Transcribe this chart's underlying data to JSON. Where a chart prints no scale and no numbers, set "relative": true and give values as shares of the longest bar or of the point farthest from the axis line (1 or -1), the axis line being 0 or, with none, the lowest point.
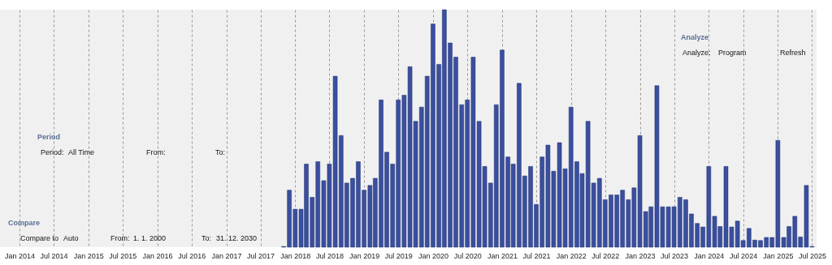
{
  "chart_data": {
    "type": "bar",
    "relative": true,
    "color": "#3a4f9e",
    "x": [
      "2017-11",
      "2017-12",
      "2018-01",
      "2018-02",
      "2018-03",
      "2018-04",
      "2018-05",
      "2018-06",
      "2018-07",
      "2018-08",
      "2018-09",
      "2018-10",
      "2018-11",
      "2018-12",
      "2019-01",
      "2019-02",
      "2019-03",
      "2019-04",
      "2019-05",
      "2019-06",
      "2019-07",
      "2019-08",
      "2019-09",
      "2019-10",
      "2019-11",
      "2019-12",
      "2020-01",
      "2020-02",
      "2020-03",
      "2020-04",
      "2020-05",
      "2020-06",
      "2020-07",
      "2020-08",
      "2020-09",
      "2020-10",
      "2020-11",
      "2020-12",
      "2021-01",
      "2021-02",
      "2021-03",
      "2021-04",
      "2021-05",
      "2021-06",
      "2021-07",
      "2021-08",
      "2021-09",
      "2021-10",
      "2021-11",
      "2021-12",
      "2022-01",
      "2022-02",
      "2022-03",
      "2022-04",
      "2022-05",
      "2022-06",
      "2022-07",
      "2022-08",
      "2022-09",
      "2022-10",
      "2022-11",
      "2022-12",
      "2023-01",
      "2023-02",
      "2023-03",
      "2023-04",
      "2023-05",
      "2023-06",
      "2023-07",
      "2023-08",
      "2023-09",
      "2023-10",
      "2023-11",
      "2023-12",
      "2024-01",
      "2024-02",
      "2024-03",
      "2024-04",
      "2024-05",
      "2024-06",
      "2024-07",
      "2024-08",
      "2024-09",
      "2024-10",
      "2024-11",
      "2024-12",
      "2025-01",
      "2025-02",
      "2025-03",
      "2025-04",
      "2025-05",
      "2025-06",
      "2025-07"
    ],
    "values": [
      0.003,
      0.24,
      0.16,
      0.16,
      0.35,
      0.21,
      0.36,
      0.28,
      0.35,
      0.72,
      0.47,
      0.27,
      0.29,
      0.36,
      0.24,
      0.26,
      0.29,
      0.62,
      0.4,
      0.35,
      0.62,
      0.64,
      0.76,
      0.53,
      0.59,
      0.72,
      0.94,
      0.77,
      1.0,
      0.86,
      0.8,
      0.6,
      0.62,
      0.8,
      0.53,
      0.34,
      0.27,
      0.6,
      0.83,
      0.38,
      0.35,
      0.69,
      0.3,
      0.34,
      0.18,
      0.38,
      0.43,
      0.32,
      0.44,
      0.33,
      0.59,
      0.36,
      0.31,
      0.53,
      0.27,
      0.29,
      0.2,
      0.22,
      0.22,
      0.24,
      0.2,
      0.25,
      0.47,
      0.15,
      0.17,
      0.68,
      0.17,
      0.17,
      0.17,
      0.21,
      0.2,
      0.14,
      0.1,
      0.085,
      0.34,
      0.13,
      0.087,
      0.34,
      0.085,
      0.11,
      0.028,
      0.079,
      0.03,
      0.028,
      0.041,
      0.041,
      0.45,
      0.041,
      0.087,
      0.13,
      0.043,
      0.26,
      0.003
    ],
    "xlim": [
      "2013-09-20",
      "2025-07-25"
    ],
    "xticks": [
      {
        "value": "2014-01",
        "label": "Jan 2014"
      },
      {
        "value": "2014-07",
        "label": "Jul 2014"
      },
      {
        "value": "2015-01",
        "label": "Jan 2015"
      },
      {
        "value": "2015-07",
        "label": "Jul 2015"
      },
      {
        "value": "2016-01",
        "label": "Jan 2016"
      },
      {
        "value": "2016-07",
        "label": "Jul 2016"
      },
      {
        "value": "2017-01",
        "label": "Jan 2017"
      },
      {
        "value": "2017-07",
        "label": "Jul 2017"
      },
      {
        "value": "2018-01",
        "label": "Jan 2018"
      },
      {
        "value": "2018-07",
        "label": "Jul 2018"
      },
      {
        "value": "2019-01",
        "label": "Jan 2019"
      },
      {
        "value": "2019-07",
        "label": "Jul 2019"
      },
      {
        "value": "2020-01",
        "label": "Jan 2020"
      },
      {
        "value": "2020-07",
        "label": "Jul 2020"
      },
      {
        "value": "2021-01",
        "label": "Jan 2021"
      },
      {
        "value": "2021-07",
        "label": "Jul 2021"
      },
      {
        "value": "2022-01",
        "label": "Jan 2022"
      },
      {
        "value": "2022-07",
        "label": "Jul 2022"
      },
      {
        "value": "2023-01",
        "label": "Jan 2023"
      },
      {
        "value": "2023-07",
        "label": "Jul 2023"
      },
      {
        "value": "2024-01",
        "label": "Jan 2024"
      },
      {
        "value": "2024-07",
        "label": "Jul 2024"
      },
      {
        "value": "2025-01",
        "label": "Jan 2025"
      },
      {
        "value": "2025-07",
        "label": "Jul 2025"
      }
    ],
    "grid": "x",
    "annotations": [
      "Period",
      "Period:",
      "All Time",
      "From:",
      "To:",
      "Compare",
      "Compare to",
      "Auto",
      "From:",
      "1. 1. 2000",
      "To:",
      "31. 12. 2030",
      "Analyze",
      "Analyze:",
      "Program",
      "Refresh"
    ]
  }
}
